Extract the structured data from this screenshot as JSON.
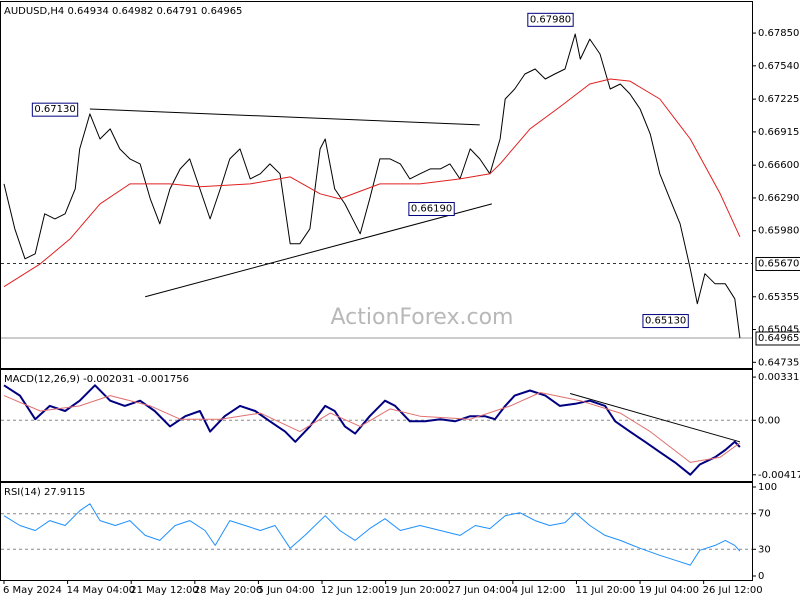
{
  "chart_data": [
    {
      "type": "line",
      "title": "AUDUSD,H4  0.64934 0.64982 0.64791 0.64965",
      "watermark": "ActionForex.com",
      "xlim": [
        0,
        11.65
      ],
      "ylim": [
        0.647,
        0.68125
      ],
      "yticks": [
        {
          "value": 0.6785,
          "label": "0.67850"
        },
        {
          "value": 0.6754,
          "label": "0.67540"
        },
        0.67225,
        0.66915,
        {
          "value": 0.666,
          "label": "0.66600"
        },
        {
          "value": 0.6629,
          "label": "0.66290"
        },
        {
          "value": 0.6598,
          "label": "0.65980"
        },
        0.65355,
        0.65045,
        0.64735
      ],
      "grid": false,
      "series": [
        {
          "color": "#000000",
          "width": 1,
          "x": [
            0,
            0.17,
            0.33,
            0.49,
            0.64,
            0.8,
            0.96,
            1.12,
            1.19,
            1.35,
            1.51,
            1.67,
            1.82,
            1.98,
            2.14,
            2.3,
            2.45,
            2.61,
            2.77,
            2.92,
            3.08,
            3.24,
            3.4,
            3.55,
            3.71,
            3.87,
            4.03,
            4.18,
            4.34,
            4.5,
            4.65,
            4.81,
            4.97,
            5.05,
            5.2,
            5.36,
            5.52,
            5.6,
            5.75,
            5.91,
            6.07,
            6.23,
            6.38,
            6.54,
            6.7,
            6.86,
            7.01,
            7.17,
            7.33,
            7.48,
            7.64,
            7.8,
            7.88,
            8.03,
            8.19,
            8.35,
            8.51,
            8.66,
            8.82,
            8.98,
            9.06,
            9.21,
            9.37,
            9.53,
            9.69,
            9.84,
            10.0,
            10.16,
            10.31,
            10.47,
            10.63,
            10.79,
            10.9,
            11.02,
            11.18,
            11.34,
            11.49,
            11.57
          ],
          "values": [
            0.66423,
            0.65998,
            0.65714,
            0.65762,
            0.6614,
            0.66092,
            0.6614,
            0.66376,
            0.66754,
            0.67085,
            0.66848,
            0.66943,
            0.66754,
            0.66659,
            0.66612,
            0.66281,
            0.66045,
            0.66376,
            0.66565,
            0.66659,
            0.66376,
            0.66092,
            0.66376,
            0.66659,
            0.66754,
            0.6647,
            0.66518,
            0.66612,
            0.66518,
            0.65856,
            0.65856,
            0.65998,
            0.66754,
            0.66848,
            0.66376,
            0.66234,
            0.66045,
            0.65951,
            0.66281,
            0.66659,
            0.66659,
            0.66612,
            0.6647,
            0.66518,
            0.66565,
            0.66565,
            0.66612,
            0.6647,
            0.66754,
            0.66659,
            0.66518,
            0.66848,
            0.67226,
            0.67321,
            0.67463,
            0.6751,
            0.67415,
            0.67463,
            0.6751,
            0.67841,
            0.67604,
            0.67793,
            0.67652,
            0.67321,
            0.67368,
            0.67274,
            0.67132,
            0.66896,
            0.66518,
            0.66281,
            0.66045,
            0.6562,
            0.65289,
            0.65573,
            0.65478,
            0.65478,
            0.65336,
            0.64965
          ]
        },
        {
          "color": "#e02020",
          "width": 1,
          "x": [
            0,
            0.57,
            1.04,
            1.51,
            1.98,
            2.61,
            3.08,
            3.87,
            4.5,
            4.97,
            5.28,
            5.91,
            6.54,
            7.17,
            7.64,
            7.8,
            8.27,
            8.74,
            9.21,
            9.53,
            9.84,
            10.31,
            10.79,
            11.26,
            11.57
          ],
          "values": [
            0.6545,
            0.65667,
            0.65903,
            0.66234,
            0.66423,
            0.66423,
            0.66395,
            0.66423,
            0.66489,
            0.66329,
            0.66281,
            0.66423,
            0.66423,
            0.6647,
            0.66518,
            0.66612,
            0.66943,
            0.67151,
            0.67368,
            0.67415,
            0.67396,
            0.67226,
            0.66848,
            0.66329,
            0.65922
          ]
        }
      ],
      "trendlines": [
        {
          "x": [
            1.35,
            7.48
          ],
          "values": [
            0.67132,
            0.66981
          ]
        },
        {
          "x": [
            2.22,
            7.67
          ],
          "values": [
            0.65355,
            0.66234
          ]
        }
      ],
      "levels": [
        {
          "value": 0.6567,
          "label": "0.65670",
          "style": "dashed"
        },
        {
          "value": 0.64965,
          "label": "0.64965",
          "style": "solid"
        }
      ],
      "annotations": [
        {
          "x": 1.19,
          "value": 0.6713,
          "label": "0.67130"
        },
        {
          "x": 7.11,
          "value": 0.6619,
          "label": "0.66190"
        },
        {
          "x": 8.98,
          "value": 0.6798,
          "label": "0.67980"
        },
        {
          "x": 10.79,
          "value": 0.6513,
          "label": "0.65130"
        }
      ]
    },
    {
      "type": "line",
      "title": "MACD(12,26,9) -0.002031 -0.001756",
      "xlim": [
        0,
        11.65
      ],
      "ylim": [
        -0.0045,
        0.0037
      ],
      "yticks": [
        0.003311,
        {
          "value": 0,
          "label": "0.00"
        },
        -0.004178
      ],
      "grid": "inner-ticks",
      "series": [
        {
          "color": "#000080",
          "width": 2,
          "x": [
            0,
            0.25,
            0.49,
            0.72,
            0.96,
            1.19,
            1.43,
            1.67,
            1.9,
            2.14,
            2.37,
            2.61,
            2.85,
            3.08,
            3.24,
            3.47,
            3.71,
            3.95,
            4.18,
            4.42,
            4.58,
            4.81,
            5.05,
            5.2,
            5.36,
            5.52,
            5.75,
            5.99,
            6.15,
            6.38,
            6.62,
            6.86,
            7.09,
            7.33,
            7.56,
            7.72,
            7.88,
            8.03,
            8.27,
            8.51,
            8.74,
            8.98,
            9.21,
            9.45,
            9.61,
            9.84,
            10.08,
            10.31,
            10.55,
            10.79,
            10.94,
            11.18,
            11.34,
            11.49,
            11.57
          ],
          "values": [
            0.00268,
            0.00189,
            8e-05,
            0.0011,
            0.00071,
            0.0015,
            0.00268,
            0.0015,
            0.0011,
            0.0015,
            0.00071,
            -0.00047,
            0.00031,
            0.00071,
            -0.00087,
            0.00031,
            0.0011,
            0.00071,
            -8e-05,
            -0.00087,
            -0.00165,
            -0.00047,
            0.0011,
            0.00071,
            -0.00047,
            -0.00102,
            0.00031,
            0.0015,
            0.0011,
            -8e-05,
            -8e-05,
            8e-05,
            -8e-05,
            0.00031,
            0.00031,
            8e-05,
            0.0011,
            0.00189,
            0.00228,
            0.00189,
            0.0011,
            0.00126,
            0.0015,
            0.0011,
            -8e-05,
            -0.00087,
            -0.00165,
            -0.00244,
            -0.00323,
            -0.00417,
            -0.00339,
            -0.00283,
            -0.00228,
            -0.00165,
            -0.00205
          ]
        },
        {
          "color": "#e07070",
          "width": 1,
          "x": [
            0,
            0.57,
            1.19,
            1.67,
            2.3,
            2.77,
            3.4,
            4.03,
            4.65,
            5.13,
            5.6,
            6.07,
            6.54,
            7.33,
            7.96,
            8.43,
            9.06,
            9.69,
            10.16,
            10.79,
            11.26,
            11.57
          ],
          "values": [
            0.00189,
            0.00071,
            0.0011,
            0.00189,
            0.0011,
            8e-05,
            8e-05,
            0.00055,
            -0.00087,
            0.00055,
            -0.00047,
            0.00087,
            0.00031,
            8e-05,
            0.0011,
            0.00213,
            0.0015,
            0.00055,
            -0.00087,
            -0.00323,
            -0.00283,
            -0.00173
          ]
        }
      ],
      "trendlines": [
        {
          "x": [
            8.9,
            11.57
          ],
          "values": [
            0.00205,
            -0.00165
          ]
        }
      ]
    },
    {
      "type": "line",
      "title": "RSI(14) 27.9115",
      "xlim": [
        0,
        11.65
      ],
      "ylim": [
        0,
        100
      ],
      "yticks": [
        100,
        70,
        30,
        0
      ],
      "grid": "inner-ticks",
      "xticks": [
        {
          "value": 0,
          "label": "6 May 2024"
        },
        {
          "value": 1,
          "label": "14 May 04:00"
        },
        {
          "value": 2,
          "label": "21 May 12:00"
        },
        {
          "value": 3,
          "label": "28 May 20:00"
        },
        {
          "value": 4,
          "label": "5 Jun 04:00"
        },
        {
          "value": 5,
          "label": "12 Jun 12:00"
        },
        {
          "value": 6,
          "label": "19 Jun 20:00"
        },
        {
          "value": 7,
          "label": "27 Jun 04:00"
        },
        {
          "value": 8,
          "label": "4 Jul 12:00"
        },
        {
          "value": 9,
          "label": "11 Jul 20:00"
        },
        {
          "value": 10,
          "label": "19 Jul 04:00"
        },
        {
          "value": 11,
          "label": "26 Jul 12:00"
        }
      ],
      "series": [
        {
          "color": "#1e90ff",
          "width": 1,
          "x": [
            0,
            0.25,
            0.49,
            0.72,
            0.96,
            1.19,
            1.35,
            1.51,
            1.75,
            1.98,
            2.22,
            2.45,
            2.69,
            2.92,
            3.16,
            3.32,
            3.55,
            3.79,
            4.03,
            4.26,
            4.5,
            4.73,
            5.05,
            5.28,
            5.52,
            5.75,
            5.99,
            6.23,
            6.54,
            6.86,
            7.17,
            7.41,
            7.64,
            7.88,
            8.11,
            8.35,
            8.58,
            8.82,
            8.98,
            9.21,
            9.45,
            9.69,
            10.0,
            10.31,
            10.55,
            10.79,
            10.94,
            11.18,
            11.34,
            11.49,
            11.57
          ],
          "values": [
            67.8,
            56.7,
            51.1,
            62.2,
            56.7,
            73.3,
            81.1,
            62.2,
            56.7,
            62.2,
            45.6,
            40,
            56.7,
            62.2,
            51.1,
            34.4,
            62.2,
            56.7,
            51.1,
            56.7,
            31.1,
            45.6,
            67.8,
            51.1,
            40,
            53.3,
            64.4,
            51.1,
            56.7,
            51.1,
            45.6,
            56.7,
            53.3,
            67.8,
            71.1,
            62.2,
            56.7,
            60,
            71.1,
            56.7,
            45.6,
            40,
            31.1,
            23.3,
            17.8,
            12.2,
            28.9,
            34.4,
            40,
            34.4,
            27.9
          ]
        }
      ]
    }
  ]
}
